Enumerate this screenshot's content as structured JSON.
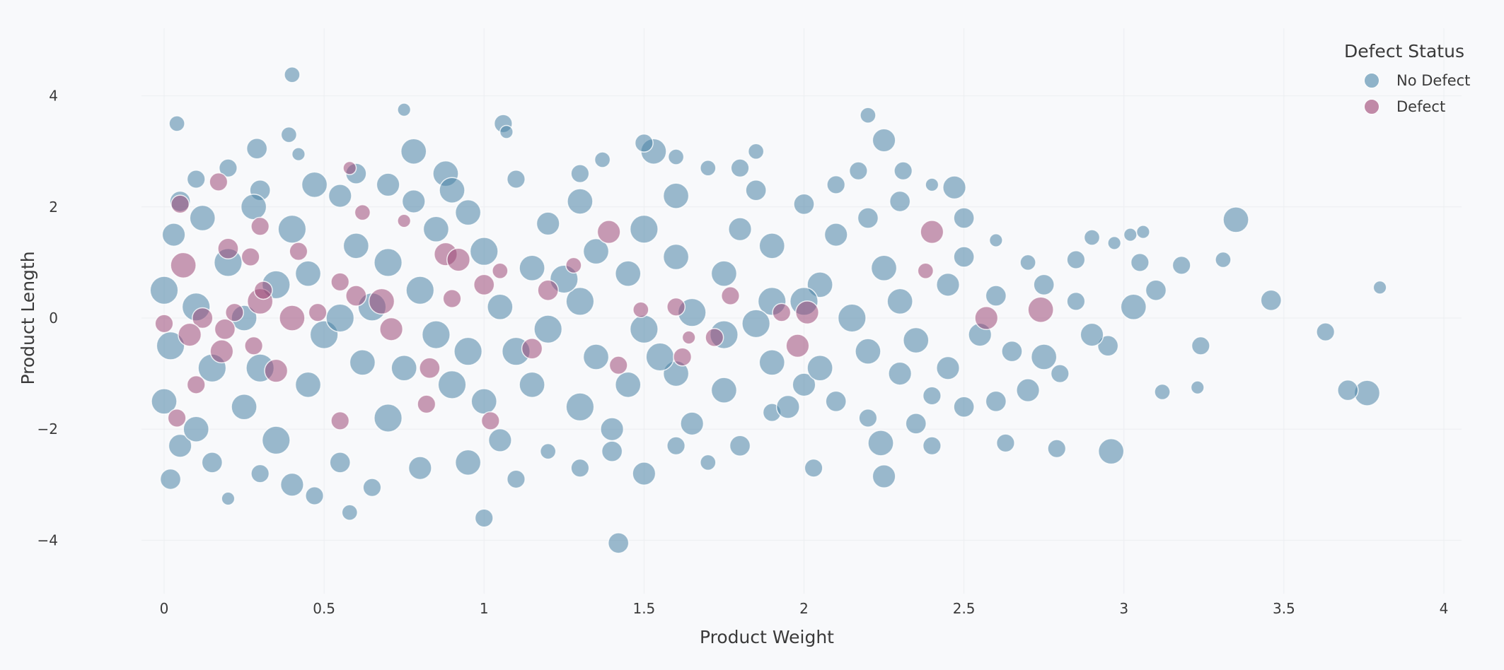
{
  "chart_data": {
    "type": "scatter",
    "xlabel": "Product Weight",
    "ylabel": "Product Length",
    "xlim": [
      -0.25,
      4.08
    ],
    "ylim": [
      -5.0,
      5.2
    ],
    "xticks": [
      "0",
      "0.5",
      "1",
      "1.5",
      "2",
      "2.5",
      "3",
      "3.5",
      "4"
    ],
    "xtick_values": [
      0,
      0.5,
      1,
      1.5,
      2,
      2.5,
      3,
      3.5,
      4
    ],
    "yticks": [
      "−4",
      "−2",
      "0",
      "2",
      "4"
    ],
    "ytick_values": [
      -4,
      -2,
      0,
      2,
      4
    ],
    "grid": true,
    "legend": {
      "title": "Defect Status",
      "placement": "top-right"
    },
    "series": [
      {
        "name": "No Defect",
        "color": "#4a83a5",
        "points": [
          [
            0.4,
            4.38,
            4
          ],
          [
            0.04,
            3.5,
            4
          ],
          [
            0.75,
            3.75,
            3
          ],
          [
            1.06,
            3.5,
            5
          ],
          [
            1.07,
            3.35,
            3
          ],
          [
            2.2,
            3.65,
            4
          ],
          [
            2.25,
            3.2,
            7
          ],
          [
            1.42,
            -4.05,
            6
          ],
          [
            1.0,
            -3.6,
            5
          ],
          [
            0.58,
            -3.5,
            4
          ],
          [
            0.02,
            -2.9,
            6
          ],
          [
            0.2,
            -3.25,
            3
          ],
          [
            0.47,
            -3.2,
            5
          ],
          [
            2.96,
            -2.4,
            8
          ],
          [
            2.79,
            -2.35,
            5
          ],
          [
            3.76,
            -1.35,
            8
          ],
          [
            3.7,
            -1.3,
            6
          ],
          [
            3.63,
            -0.25,
            5
          ],
          [
            3.8,
            0.55,
            3
          ],
          [
            3.46,
            0.32,
            6
          ],
          [
            3.35,
            1.77,
            8
          ],
          [
            3.31,
            1.05,
            4
          ],
          [
            3.24,
            -0.5,
            5
          ],
          [
            3.18,
            0.95,
            5
          ],
          [
            3.12,
            -1.33,
            4
          ],
          [
            3.23,
            -1.25,
            3
          ],
          [
            3.02,
            1.5,
            3
          ],
          [
            3.06,
            1.55,
            3
          ],
          [
            2.97,
            1.35,
            3
          ],
          [
            2.9,
            1.45,
            4
          ],
          [
            2.85,
            1.05,
            5
          ],
          [
            2.03,
            -2.7,
            5
          ],
          [
            2.25,
            -2.85,
            7
          ],
          [
            2.24,
            -2.25,
            8
          ],
          [
            2.63,
            -2.25,
            5
          ],
          [
            2.0,
            2.05,
            6
          ],
          [
            2.4,
            2.4,
            3
          ],
          [
            2.47,
            2.35,
            7
          ],
          [
            2.31,
            2.65,
            5
          ],
          [
            1.37,
            2.85,
            4
          ],
          [
            0.29,
            3.05,
            6
          ],
          [
            0.78,
            3.0,
            8
          ],
          [
            1.53,
            3.0,
            8
          ],
          [
            1.5,
            3.15,
            5
          ],
          [
            0.39,
            3.3,
            4
          ],
          [
            0.42,
            2.95,
            3
          ],
          [
            0.1,
            2.5,
            5
          ],
          [
            0.3,
            2.3,
            6
          ],
          [
            0.47,
            2.4,
            8
          ],
          [
            0.7,
            2.4,
            7
          ],
          [
            0.88,
            2.6,
            8
          ],
          [
            1.1,
            2.5,
            5
          ],
          [
            1.3,
            2.6,
            5
          ],
          [
            1.6,
            2.9,
            4
          ],
          [
            1.8,
            2.7,
            5
          ],
          [
            1.85,
            3.0,
            4
          ],
          [
            2.17,
            2.65,
            5
          ],
          [
            2.3,
            2.1,
            6
          ],
          [
            2.6,
            1.4,
            3
          ],
          [
            2.7,
            1.0,
            4
          ],
          [
            2.75,
            0.6,
            6
          ],
          [
            2.85,
            0.3,
            5
          ],
          [
            2.95,
            -0.5,
            6
          ],
          [
            3.05,
            1.0,
            5
          ],
          [
            3.1,
            0.5,
            6
          ],
          [
            3.03,
            0.2,
            8
          ],
          [
            2.9,
            -0.3,
            7
          ],
          [
            2.8,
            -1.0,
            5
          ],
          [
            2.7,
            -1.3,
            7
          ],
          [
            2.75,
            -0.7,
            8
          ],
          [
            2.6,
            -1.5,
            6
          ],
          [
            2.5,
            -1.6,
            6
          ],
          [
            2.4,
            -1.4,
            5
          ],
          [
            2.3,
            -1.0,
            7
          ],
          [
            2.2,
            -1.8,
            5
          ],
          [
            2.1,
            -1.5,
            6
          ],
          [
            2.0,
            -1.2,
            7
          ],
          [
            1.9,
            -1.7,
            5
          ],
          [
            1.8,
            -2.3,
            6
          ],
          [
            1.7,
            -2.6,
            4
          ],
          [
            1.6,
            -2.3,
            5
          ],
          [
            1.5,
            -2.8,
            7
          ],
          [
            1.4,
            -2.4,
            6
          ],
          [
            1.3,
            -2.7,
            5
          ],
          [
            1.2,
            -2.4,
            4
          ],
          [
            1.1,
            -2.9,
            5
          ],
          [
            0.95,
            -2.6,
            8
          ],
          [
            0.8,
            -2.7,
            7
          ],
          [
            0.65,
            -3.05,
            5
          ],
          [
            0.55,
            -2.6,
            6
          ],
          [
            0.4,
            -3.0,
            7
          ],
          [
            0.3,
            -2.8,
            5
          ],
          [
            0.15,
            -2.6,
            6
          ],
          [
            0.05,
            -2.3,
            7
          ],
          [
            0.0,
            -1.5,
            8
          ],
          [
            0.02,
            -0.5,
            9
          ],
          [
            0.0,
            0.5,
            9
          ],
          [
            0.03,
            1.5,
            7
          ],
          [
            0.05,
            2.1,
            6
          ],
          [
            0.12,
            1.8,
            8
          ],
          [
            0.2,
            1.0,
            9
          ],
          [
            0.25,
            0.0,
            8
          ],
          [
            0.15,
            -0.9,
            9
          ],
          [
            0.25,
            -1.6,
            8
          ],
          [
            0.35,
            -2.2,
            9
          ],
          [
            0.45,
            -1.2,
            8
          ],
          [
            0.5,
            -0.3,
            9
          ],
          [
            0.45,
            0.8,
            8
          ],
          [
            0.4,
            1.6,
            9
          ],
          [
            0.55,
            2.2,
            7
          ],
          [
            0.6,
            1.3,
            8
          ],
          [
            0.65,
            0.2,
            9
          ],
          [
            0.62,
            -0.8,
            8
          ],
          [
            0.7,
            -1.8,
            9
          ],
          [
            0.75,
            -0.9,
            8
          ],
          [
            0.8,
            0.5,
            9
          ],
          [
            0.85,
            1.6,
            8
          ],
          [
            0.78,
            2.1,
            7
          ],
          [
            0.95,
            1.9,
            8
          ],
          [
            1.0,
            1.2,
            9
          ],
          [
            1.05,
            0.2,
            8
          ],
          [
            0.95,
            -0.6,
            9
          ],
          [
            1.0,
            -1.5,
            8
          ],
          [
            1.05,
            -2.2,
            7
          ],
          [
            1.15,
            -1.2,
            8
          ],
          [
            1.2,
            -0.2,
            9
          ],
          [
            1.15,
            0.9,
            8
          ],
          [
            1.2,
            1.7,
            7
          ],
          [
            1.3,
            2.1,
            8
          ],
          [
            1.35,
            1.2,
            8
          ],
          [
            1.3,
            0.3,
            9
          ],
          [
            1.35,
            -0.7,
            8
          ],
          [
            1.3,
            -1.6,
            9
          ],
          [
            1.4,
            -2.0,
            7
          ],
          [
            1.45,
            -1.2,
            8
          ],
          [
            1.5,
            -0.2,
            9
          ],
          [
            1.45,
            0.8,
            8
          ],
          [
            1.5,
            1.6,
            9
          ],
          [
            1.6,
            2.2,
            8
          ],
          [
            1.6,
            1.1,
            8
          ],
          [
            1.65,
            0.1,
            9
          ],
          [
            1.6,
            -1.0,
            8
          ],
          [
            1.65,
            -1.9,
            7
          ],
          [
            1.75,
            -1.3,
            8
          ],
          [
            1.75,
            -0.3,
            9
          ],
          [
            1.75,
            0.8,
            8
          ],
          [
            1.8,
            1.6,
            7
          ],
          [
            1.85,
            2.3,
            6
          ],
          [
            1.9,
            1.3,
            8
          ],
          [
            1.9,
            0.3,
            9
          ],
          [
            1.9,
            -0.8,
            8
          ],
          [
            1.95,
            -1.6,
            7
          ],
          [
            2.05,
            -0.9,
            8
          ],
          [
            2.05,
            0.6,
            8
          ],
          [
            2.1,
            1.5,
            7
          ],
          [
            2.15,
            0.0,
            9
          ],
          [
            2.2,
            -0.6,
            8
          ],
          [
            2.25,
            0.9,
            8
          ],
          [
            2.2,
            1.8,
            6
          ],
          [
            2.3,
            0.3,
            8
          ],
          [
            2.35,
            -0.4,
            8
          ],
          [
            2.35,
            -1.9,
            6
          ],
          [
            2.45,
            0.6,
            7
          ],
          [
            2.45,
            -0.9,
            7
          ],
          [
            2.5,
            1.1,
            6
          ],
          [
            2.55,
            -0.3,
            7
          ],
          [
            2.6,
            0.4,
            6
          ],
          [
            2.65,
            -0.6,
            6
          ],
          [
            2.5,
            1.8,
            6
          ],
          [
            2.4,
            -2.3,
            5
          ],
          [
            2.1,
            2.4,
            5
          ],
          [
            1.7,
            2.7,
            4
          ],
          [
            0.6,
            2.6,
            6
          ],
          [
            0.2,
            2.7,
            5
          ],
          [
            0.1,
            -2.0,
            8
          ],
          [
            0.3,
            -0.9,
            9
          ],
          [
            0.35,
            0.6,
            9
          ],
          [
            0.7,
            1.0,
            9
          ],
          [
            0.9,
            -1.2,
            9
          ],
          [
            1.1,
            -0.6,
            9
          ],
          [
            1.25,
            0.7,
            9
          ],
          [
            1.55,
            -0.7,
            9
          ],
          [
            1.85,
            -0.1,
            9
          ],
          [
            2.0,
            0.3,
            9
          ],
          [
            0.85,
            -0.3,
            9
          ],
          [
            0.55,
            0.0,
            9
          ],
          [
            0.1,
            0.2,
            9
          ],
          [
            0.28,
            2.0,
            8
          ],
          [
            0.9,
            2.3,
            8
          ]
        ]
      },
      {
        "name": "Defect",
        "color": "#9c4a78",
        "points": [
          [
            0.06,
            0.95,
            8
          ],
          [
            0.05,
            2.05,
            5
          ],
          [
            0.17,
            2.45,
            5
          ],
          [
            0.3,
            1.65,
            5
          ],
          [
            0.2,
            1.25,
            6
          ],
          [
            0.27,
            1.1,
            5
          ],
          [
            0.58,
            2.7,
            3
          ],
          [
            0.62,
            1.9,
            4
          ],
          [
            0.42,
            1.2,
            5
          ],
          [
            0.55,
            0.65,
            5
          ],
          [
            0.6,
            0.4,
            6
          ],
          [
            0.3,
            0.3,
            8
          ],
          [
            0.31,
            0.5,
            5
          ],
          [
            0.4,
            0.0,
            8
          ],
          [
            0.48,
            0.1,
            5
          ],
          [
            0.68,
            0.3,
            8
          ],
          [
            0.71,
            -0.2,
            7
          ],
          [
            0.12,
            0.0,
            6
          ],
          [
            0.08,
            -0.3,
            7
          ],
          [
            0.0,
            -0.1,
            5
          ],
          [
            0.18,
            -0.6,
            7
          ],
          [
            0.28,
            -0.5,
            5
          ],
          [
            0.35,
            -0.95,
            7
          ],
          [
            0.1,
            -1.2,
            5
          ],
          [
            0.04,
            -1.8,
            5
          ],
          [
            0.55,
            -1.85,
            5
          ],
          [
            0.83,
            -0.9,
            6
          ],
          [
            0.82,
            -1.55,
            5
          ],
          [
            1.02,
            -1.85,
            5
          ],
          [
            0.88,
            1.15,
            7
          ],
          [
            0.92,
            1.05,
            7
          ],
          [
            1.0,
            0.6,
            6
          ],
          [
            1.05,
            0.85,
            4
          ],
          [
            0.9,
            0.35,
            5
          ],
          [
            1.15,
            -0.55,
            6
          ],
          [
            1.2,
            0.5,
            6
          ],
          [
            1.28,
            0.95,
            4
          ],
          [
            1.39,
            1.55,
            7
          ],
          [
            1.49,
            0.15,
            4
          ],
          [
            1.42,
            -0.85,
            5
          ],
          [
            1.6,
            0.2,
            5
          ],
          [
            1.62,
            -0.7,
            5
          ],
          [
            1.64,
            -0.35,
            3
          ],
          [
            1.72,
            -0.35,
            5
          ],
          [
            1.77,
            0.4,
            5
          ],
          [
            1.93,
            0.1,
            5
          ],
          [
            1.98,
            -0.5,
            7
          ],
          [
            2.01,
            0.1,
            7
          ],
          [
            2.4,
            1.55,
            7
          ],
          [
            2.38,
            0.85,
            4
          ],
          [
            2.57,
            0.0,
            7
          ],
          [
            2.74,
            0.15,
            8
          ],
          [
            0.75,
            1.75,
            3
          ],
          [
            0.19,
            -0.2,
            6
          ],
          [
            0.22,
            0.1,
            5
          ]
        ]
      }
    ]
  }
}
